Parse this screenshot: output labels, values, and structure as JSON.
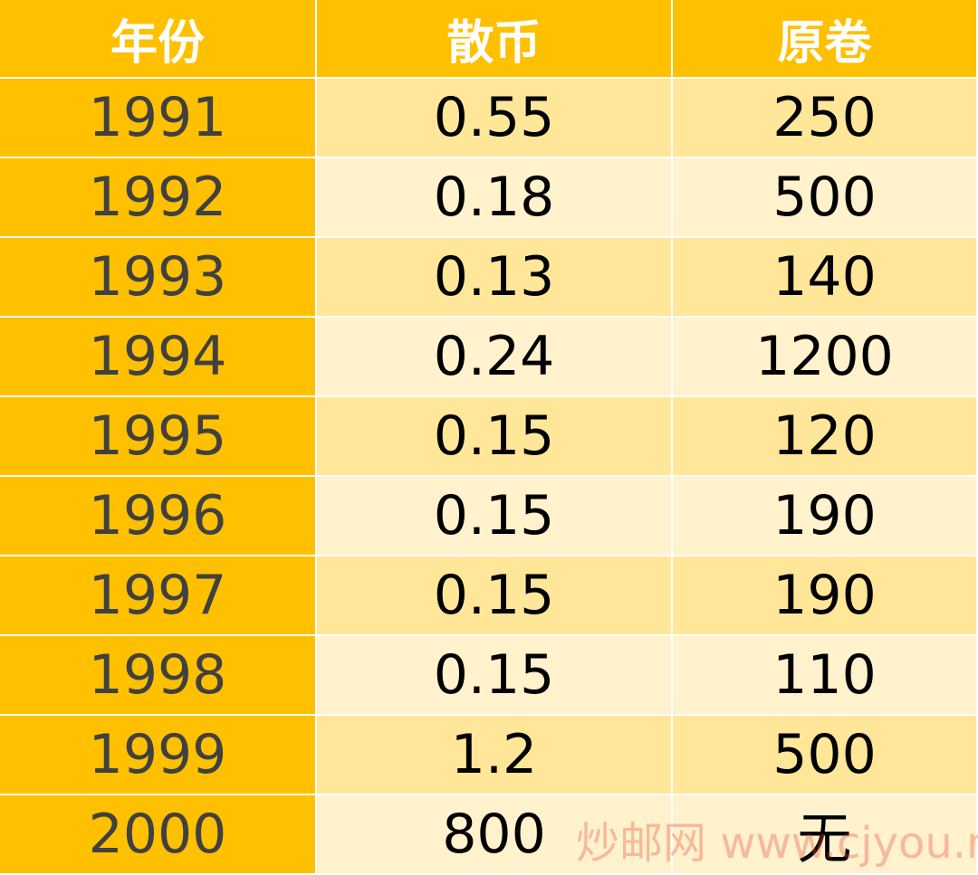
{
  "table": {
    "header": [
      "年份",
      "散币",
      "原卷"
    ],
    "rows": [
      [
        "1991",
        "0.55",
        "250"
      ],
      [
        "1992",
        "0.18",
        "500"
      ],
      [
        "1993",
        "0.13",
        "140"
      ],
      [
        "1994",
        "0.24",
        "1200"
      ],
      [
        "1995",
        "0.15",
        "120"
      ],
      [
        "1996",
        "0.15",
        "190"
      ],
      [
        "1997",
        "0.15",
        "190"
      ],
      [
        "1998",
        "0.15",
        "110"
      ],
      [
        "1999",
        "1.2",
        "500"
      ],
      [
        "2000",
        "800",
        "无"
      ]
    ]
  },
  "watermark": "炒邮网 www.cjyou.net"
}
